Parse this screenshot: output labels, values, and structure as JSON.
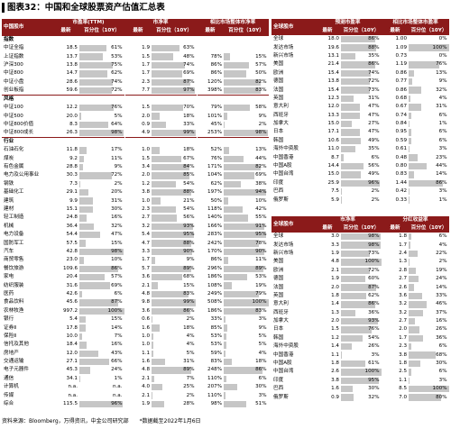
{
  "header": {
    "title": "图表32：中国和全球股票资产估值汇总表"
  },
  "china_table": {
    "name_header": "中国股市",
    "groups": [
      "市盈率(TTM)",
      "市净率",
      "相比市场整体市净率"
    ],
    "sub": [
      "最新",
      "百分位（10Y）"
    ],
    "sections": [
      {
        "label": "指数",
        "rows": [
          [
            "中证全指",
            "18.5",
            "61%",
            "1.9",
            "63%",
            null,
            null
          ],
          [
            "上证指数",
            "13.7",
            "53%",
            "1.5",
            "48%",
            "78%",
            "15%"
          ],
          [
            "沪深300",
            "13.8",
            "75%",
            "1.7",
            "74%",
            "86%",
            "57%"
          ],
          [
            "中证800",
            "14.7",
            "62%",
            "1.7",
            "69%",
            "86%",
            "50%"
          ],
          [
            "中证小盘",
            "28.6",
            "74%",
            "2.3",
            "87%",
            "120%",
            "82%"
          ],
          [
            "创业板指",
            "59.6",
            "72%",
            "7.7",
            "97%",
            "398%",
            "83%"
          ]
        ]
      },
      {
        "label": "风格",
        "rows": [
          [
            "中证100",
            "12.2",
            "76%",
            "1.5",
            "70%",
            "79%",
            "58%"
          ],
          [
            "中证500",
            "20.0",
            "5%",
            "2.0",
            "18%",
            "101%",
            "9%"
          ],
          [
            "中证800价值",
            "8.3",
            "64%",
            "0.9",
            "33%",
            "45%",
            "2%"
          ],
          [
            "中证800成长",
            "26.3",
            "98%",
            "4.9",
            "99%",
            "253%",
            "98%"
          ]
        ]
      },
      {
        "label": "行业",
        "rows": [
          [
            "石油石化",
            "11.8",
            "17%",
            "1.0",
            "18%",
            "52%",
            "13%"
          ],
          [
            "煤炭",
            "9.2",
            "11%",
            "1.5",
            "67%",
            "76%",
            "44%"
          ],
          [
            "有色金属",
            "28.8",
            "9%",
            "3.4",
            "84%",
            "171%",
            "82%"
          ],
          [
            "电力及公用事业",
            "30.3",
            "72%",
            "2.0",
            "85%",
            "104%",
            "69%"
          ],
          [
            "钢铁",
            "7.3",
            "2%",
            "1.2",
            "54%",
            "62%",
            "38%"
          ],
          [
            "基础化工",
            "29.1",
            "20%",
            "3.8",
            "88%",
            "197%",
            "94%"
          ],
          [
            "建筑",
            "9.9",
            "31%",
            "1.0",
            "21%",
            "50%",
            "10%"
          ],
          [
            "建材",
            "15.1",
            "30%",
            "2.3",
            "54%",
            "118%",
            "42%"
          ],
          [
            "轻工制造",
            "24.8",
            "16%",
            "2.7",
            "56%",
            "140%",
            "55%"
          ],
          [
            "机械",
            "36.4",
            "32%",
            "3.2",
            "93%",
            "166%",
            "91%"
          ],
          [
            "电力设备",
            "54.4",
            "47%",
            "5.4",
            "95%",
            "283%",
            "95%"
          ],
          [
            "国防军工",
            "57.5",
            "15%",
            "4.7",
            "88%",
            "242%",
            "78%"
          ],
          [
            "汽车",
            "42.8",
            "98%",
            "3.3",
            "90%",
            "170%",
            "90%"
          ],
          [
            "商贸零售",
            "23.0",
            "10%",
            "1.7",
            "9%",
            "86%",
            "11%"
          ],
          [
            "餐饮旅游",
            "109.6",
            "86%",
            "5.7",
            "89%",
            "296%",
            "89%"
          ],
          [
            "家电",
            "20.4",
            "57%",
            "3.6",
            "68%",
            "186%",
            "53%"
          ],
          [
            "纺织服装",
            "31.6",
            "69%",
            "2.1",
            "15%",
            "108%",
            "19%"
          ],
          [
            "医药",
            "42.6",
            "6%",
            "4.8",
            "83%",
            "249%",
            "79%"
          ],
          [
            "食品饮料",
            "45.6",
            "87%",
            "9.8",
            "99%",
            "508%",
            "100%"
          ],
          [
            "农林牧渔",
            "997.2",
            "100%",
            "3.6",
            "86%",
            "186%",
            "83%"
          ],
          [
            "银行",
            "5.4",
            "15%",
            "0.6",
            "2%",
            "33%",
            "3%"
          ],
          [
            "证券Ⅱ",
            "17.8",
            "14%",
            "1.6",
            "18%",
            "85%",
            "9%"
          ],
          [
            "保险Ⅱ",
            "10.0",
            "7%",
            "1.0",
            "4%",
            "53%",
            "5%"
          ],
          [
            "信托及其他",
            "18.4",
            "16%",
            "1.0",
            "4%",
            "53%",
            "5%"
          ],
          [
            "房地产",
            "12.0",
            "43%",
            "1.1",
            "5%",
            "59%",
            "4%"
          ],
          [
            "交通运输",
            "27.1",
            "66%",
            "1.6",
            "31%",
            "83%",
            "18%"
          ],
          [
            "电子元器件",
            "45.3",
            "24%",
            "4.8",
            "89%",
            "248%",
            "86%"
          ],
          [
            "通信",
            "34.1",
            "1%",
            "2.1",
            "7%",
            "110%",
            "6%"
          ],
          [
            "计算机",
            "n.a.",
            "n.a.",
            "4.0",
            "25%",
            "207%",
            "30%"
          ],
          [
            "传媒",
            "n.a.",
            "n.a.",
            "2.1",
            "2%",
            "110%",
            "3%"
          ],
          [
            "综合",
            "115.5",
            "96%",
            "1.9",
            "28%",
            "98%",
            "51%"
          ]
        ]
      }
    ]
  },
  "global_pe": {
    "name_header": "全球股市",
    "groups": [
      "预测市盈率",
      "相比市场整体市盈率"
    ],
    "sub": [
      "最新",
      "百分位（10Y）"
    ],
    "rows": [
      [
        "全球",
        "18.0",
        "86%",
        "1.00",
        "0%"
      ],
      [
        "发达市场",
        "19.6",
        "88%",
        "1.09",
        "100%"
      ],
      [
        "新兴市场",
        "13.1",
        "35%",
        "0.73",
        "0%"
      ],
      [
        "美国",
        "21.4",
        "86%",
        "1.19",
        "76%"
      ],
      [
        "欧洲",
        "15.4",
        "74%",
        "0.86",
        "13%"
      ],
      [
        "德国",
        "13.8",
        "72%",
        "0.77",
        "9%"
      ],
      [
        "法国",
        "15.4",
        "73%",
        "0.86",
        "32%"
      ],
      [
        "英国",
        "12.3",
        "31%",
        "0.68",
        "4%"
      ],
      [
        "意大利",
        "12.0",
        "47%",
        "0.67",
        "31%"
      ],
      [
        "西班牙",
        "13.3",
        "47%",
        "0.74",
        "6%"
      ],
      [
        "加拿大",
        "15.0",
        "27%",
        "0.84",
        "1%"
      ],
      [
        "日本",
        "17.1",
        "47%",
        "0.95",
        "6%"
      ],
      [
        "韩国",
        "10.6",
        "49%",
        "0.59",
        "6%"
      ],
      [
        "海外中资股",
        "11.0",
        "35%",
        "0.61",
        "3%"
      ],
      [
        "中国香港",
        "8.7",
        "6%",
        "0.48",
        "23%"
      ],
      [
        "中国A股",
        "14.4",
        "56%",
        "0.80",
        "44%"
      ],
      [
        "中国台湾",
        "15.0",
        "49%",
        "0.83",
        "14%"
      ],
      [
        "印度",
        "25.9",
        "96%",
        "1.44",
        "86%"
      ],
      [
        "巴西",
        "7.5",
        "2%",
        "0.42",
        "3%"
      ],
      [
        "俄罗斯",
        "5.9",
        "2%",
        "0.33",
        "1%"
      ]
    ]
  },
  "global_pb": {
    "name_header": "全球股市",
    "groups": [
      "市净率",
      "分红收益率"
    ],
    "sub": [
      "最新",
      "百分位（10Y）"
    ],
    "rows": [
      [
        "全球",
        "3.0",
        "98%",
        "1.8",
        "6%"
      ],
      [
        "发达市场",
        "3.3",
        "98%",
        "1.7",
        "4%"
      ],
      [
        "新兴市场",
        "1.9",
        "73%",
        "2.4",
        "22%"
      ],
      [
        "美国",
        "4.8",
        "100%",
        "1.3",
        "2%"
      ],
      [
        "欧洲",
        "2.1",
        "72%",
        "2.8",
        "19%"
      ],
      [
        "德国",
        "1.9",
        "60%",
        "2.7",
        "24%"
      ],
      [
        "法国",
        "2.0",
        "87%",
        "2.6",
        "14%"
      ],
      [
        "英国",
        "1.8",
        "62%",
        "3.6",
        "33%"
      ],
      [
        "意大利",
        "1.4",
        "86%",
        "3.2",
        "46%"
      ],
      [
        "西班牙",
        "1.3",
        "36%",
        "3.2",
        "37%"
      ],
      [
        "加拿大",
        "2.0",
        "93%",
        "2.7",
        "16%"
      ],
      [
        "日本",
        "1.5",
        "76%",
        "2.0",
        "26%"
      ],
      [
        "韩国",
        "1.2",
        "54%",
        "1.7",
        "36%"
      ],
      [
        "海外中资股",
        "1.4",
        "26%",
        "2.3",
        "6%"
      ],
      [
        "中国香港",
        "1.1",
        "3%",
        "3.8",
        "68%"
      ],
      [
        "中国A股",
        "1.8",
        "61%",
        "1.8",
        "30%"
      ],
      [
        "中国台湾",
        "2.6",
        "100%",
        "2.5",
        "6%"
      ],
      [
        "印度",
        "3.8",
        "95%",
        "1.1",
        "3%"
      ],
      [
        "巴西",
        "1.6",
        "30%",
        "8.5",
        "100%"
      ],
      [
        "俄罗斯",
        "0.9",
        "32%",
        "7.0",
        "80%"
      ]
    ]
  },
  "footer": {
    "source": "资料来源：Bloomberg，万得资讯，中金公司研究部",
    "note": "*数据截至2022年1月6日"
  }
}
